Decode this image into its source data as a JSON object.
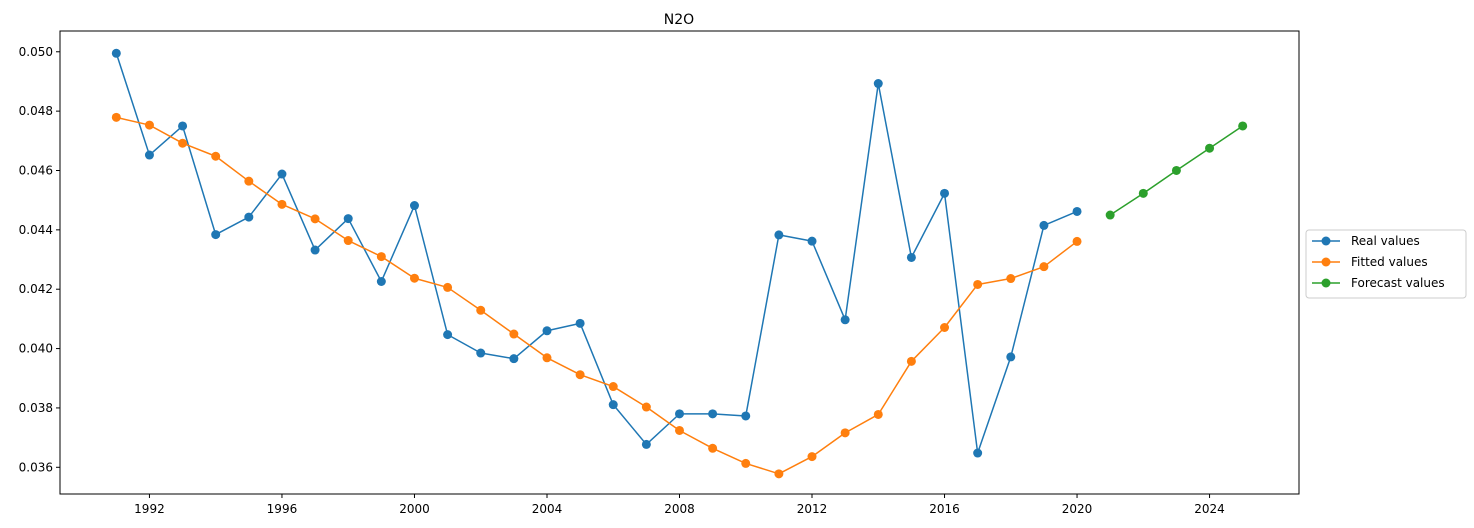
{
  "chart_data": {
    "type": "line",
    "title": "N2O",
    "xlabel": "",
    "ylabel": "",
    "xlim": [
      1989.3,
      2026.7
    ],
    "ylim": [
      0.0351,
      0.0507
    ],
    "xticks": [
      1992,
      1996,
      2000,
      2004,
      2008,
      2012,
      2016,
      2020,
      2024
    ],
    "yticks": [
      0.036,
      0.038,
      0.04,
      0.042,
      0.044,
      0.046,
      0.048,
      0.05
    ],
    "grid": false,
    "legend_position": "center-right, outside plot area",
    "series": [
      {
        "name": "Real values",
        "color": "#1f77b4",
        "marker": "circle",
        "x": [
          1991,
          1992,
          1993,
          1994,
          1995,
          1996,
          1997,
          1998,
          1999,
          2000,
          2001,
          2002,
          2003,
          2004,
          2005,
          2006,
          2007,
          2008,
          2009,
          2010,
          2011,
          2012,
          2013,
          2014,
          2015,
          2016,
          2017,
          2018,
          2019,
          2020
        ],
        "y": [
          0.04995,
          0.04652,
          0.0475,
          0.04384,
          0.04443,
          0.04588,
          0.04332,
          0.04438,
          0.04226,
          0.04482,
          0.04047,
          0.03985,
          0.03966,
          0.0406,
          0.04085,
          0.03811,
          0.03677,
          0.0378,
          0.0378,
          0.03773,
          0.04383,
          0.04362,
          0.04097,
          0.04893,
          0.04307,
          0.04523,
          0.03648,
          0.03972,
          0.04415,
          0.04462
        ]
      },
      {
        "name": "Fitted values",
        "color": "#ff7f0e",
        "marker": "circle",
        "x": [
          1991,
          1992,
          1993,
          1994,
          1995,
          1996,
          1997,
          1998,
          1999,
          2000,
          2001,
          2002,
          2003,
          2004,
          2005,
          2006,
          2007,
          2008,
          2009,
          2010,
          2011,
          2012,
          2013,
          2014,
          2015,
          2016,
          2017,
          2018,
          2019,
          2020
        ],
        "y": [
          0.04779,
          0.04753,
          0.04692,
          0.04648,
          0.04564,
          0.04486,
          0.04437,
          0.04364,
          0.0431,
          0.04237,
          0.04206,
          0.04129,
          0.04049,
          0.03969,
          0.03912,
          0.03872,
          0.03803,
          0.03724,
          0.03664,
          0.03613,
          0.03578,
          0.03636,
          0.03716,
          0.03778,
          0.03957,
          0.04071,
          0.04216,
          0.04236,
          0.04276,
          0.04361
        ]
      },
      {
        "name": "Forecast values",
        "color": "#2ca02c",
        "marker": "circle",
        "x": [
          2021,
          2022,
          2023,
          2024,
          2025
        ],
        "y": [
          0.0445,
          0.04523,
          0.046,
          0.04675,
          0.0475
        ]
      }
    ]
  }
}
